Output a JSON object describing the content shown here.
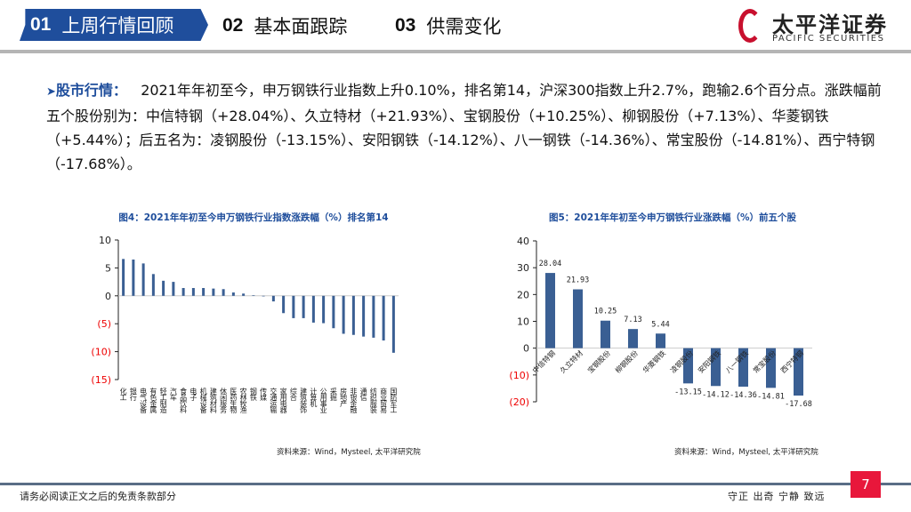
{
  "header": {
    "tabs": [
      {
        "num": "01",
        "label": "上周行情回顾",
        "active": true
      },
      {
        "num": "02",
        "label": "基本面跟踪"
      },
      {
        "num": "03",
        "label": "供需变化"
      }
    ],
    "logo_cn": "太平洋证券",
    "logo_en": "PACIFIC SECURITIES"
  },
  "summary": {
    "label": "股市行情：",
    "text": "2021年年初至今，申万钢铁行业指数上升0.10%，排名第14，沪深300指数上升2.7%，跑输2.6个百分点。涨跌幅前五个股份别为：中信特钢（+28.04%）、久立特材（+21.93%）、宝钢股份（+10.25%）、柳钢股份（+7.13%）、华菱钢铁（+5.44%）；后五名为：凌钢股份（-13.15%）、安阳钢铁（-14.12%）、八一钢铁（-14.36%）、常宝股份（-14.81%）、西宁特钢（-17.68%）。"
  },
  "chart_data": [
    {
      "type": "bar",
      "title": "图4：2021年年初至今申万钢铁行业指数涨跌幅（%）排名第14",
      "categories": [
        "化工",
        "银行",
        "电气设备",
        "有色金属",
        "轻工制造",
        "汽车",
        "食品饮料",
        "电子",
        "机械设备",
        "建筑材料",
        "休闲服务",
        "医药生物",
        "农林牧渔",
        "钢铁",
        "传媒",
        "交通运输",
        "家用电器",
        "综合",
        "建筑装饰",
        "计算机",
        "公用事业",
        "采掘",
        "房地产",
        "非银金融",
        "通信",
        "纺织服装",
        "商业贸易",
        "国防军工"
      ],
      "values": [
        6.6,
        6.5,
        5.8,
        3.9,
        2.7,
        2.5,
        1.4,
        1.4,
        1.4,
        1.3,
        1.2,
        0.6,
        0.4,
        0.1,
        -0.1,
        -1.0,
        -3.1,
        -4.0,
        -4.0,
        -4.8,
        -4.9,
        -5.8,
        -6.8,
        -7.0,
        -7.3,
        -7.5,
        -8.0,
        -10.2
      ],
      "ylim": [
        -15,
        10
      ],
      "yticks": [
        10,
        5,
        0,
        -5,
        -10,
        -15
      ],
      "ytick_labels": [
        "10",
        "5",
        "0",
        "(5)",
        "(10)",
        "(15)"
      ],
      "bar_color": "#3a5f93",
      "negative_tick_color": "#e00000",
      "source": "资料来源：Wind，Mysteel, 太平洋研究院"
    },
    {
      "type": "bar",
      "title": "图5：2021年年初至今申万钢铁行业涨跌幅（%）前五个股",
      "categories": [
        "中信特钢",
        "久立特材",
        "宝钢股份",
        "柳钢股份",
        "华菱钢铁",
        "凌钢股份",
        "安阳钢铁",
        "八一钢铁",
        "常宝股份",
        "西宁特钢"
      ],
      "values": [
        28.04,
        21.93,
        10.25,
        7.13,
        5.44,
        -13.15,
        -14.12,
        -14.36,
        -14.81,
        -17.68
      ],
      "data_labels": [
        "28.04",
        "21.93",
        "10.25",
        "7.13",
        "5.44",
        "-13.15",
        "-14.12",
        "-14.36",
        "-14.81",
        "-17.68"
      ],
      "ylim": [
        -20,
        40
      ],
      "yticks": [
        40,
        30,
        20,
        10,
        0,
        -10,
        -20
      ],
      "ytick_labels": [
        "40",
        "30",
        "20",
        "10",
        "0",
        "(10)",
        "(20)"
      ],
      "bar_color": "#3a5f93",
      "negative_tick_color": "#e00000",
      "source": "资料来源：Wind，Mysteel, 太平洋研究院"
    }
  ],
  "footer": {
    "disclaimer": "请务必阅读正文之后的免责条款部分",
    "motto": "守正 出奇 宁静 致远",
    "page": "7"
  }
}
